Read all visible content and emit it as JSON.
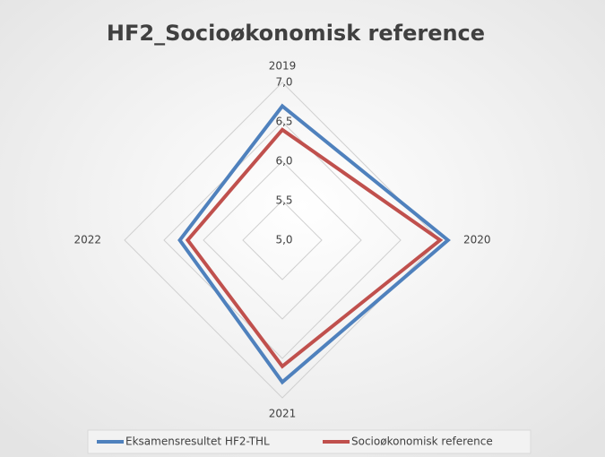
{
  "chart_data": {
    "type": "radar",
    "title": "HF2_Socioøkonomisk reference",
    "categories": [
      "2019",
      "2020",
      "2021",
      "2022"
    ],
    "series": [
      {
        "name": "Eksamensresultet HF2-THL",
        "color": "#4f81bd",
        "values": [
          6.7,
          7.1,
          6.8,
          6.3
        ]
      },
      {
        "name": "Socioøkonomisk reference",
        "color": "#c0504d",
        "values": [
          6.4,
          7.0,
          6.6,
          6.2
        ]
      }
    ],
    "ylim": [
      5.0,
      7.0
    ],
    "yticks": [
      {
        "value": 5.0,
        "label": "5,0"
      },
      {
        "value": 5.5,
        "label": "5,5"
      },
      {
        "value": 6.0,
        "label": "6,0"
      },
      {
        "value": 6.5,
        "label": "6,5"
      },
      {
        "value": 7.0,
        "label": "7,0"
      }
    ],
    "grid": true,
    "legend": "bottom"
  }
}
